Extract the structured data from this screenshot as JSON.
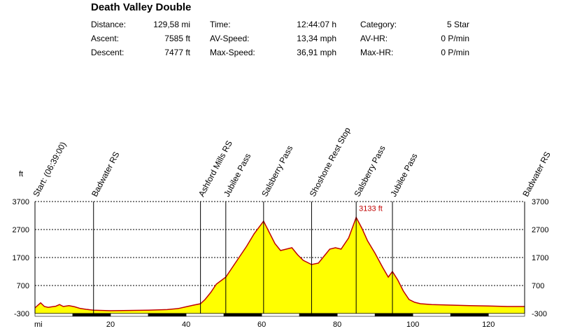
{
  "title": "Death Valley Double",
  "stats": [
    {
      "label": "Distance:",
      "value": "129,58 mi"
    },
    {
      "label": "Ascent:",
      "value": "7585 ft"
    },
    {
      "label": "Descent:",
      "value": "7477 ft"
    },
    {
      "label": "Time:",
      "value": "12:44:07 h"
    },
    {
      "label": "AV-Speed:",
      "value": "13,34 mph"
    },
    {
      "label": "Max-Speed:",
      "value": "36,91 mph"
    },
    {
      "label": "Category:",
      "value": "5 Star"
    },
    {
      "label": "AV-HR:",
      "value": "0 P/min"
    },
    {
      "label": "Max-HR:",
      "value": "0 P/min"
    }
  ],
  "chart_data": {
    "type": "area",
    "xlabel": "mi",
    "ylabel": "ft",
    "xlim": [
      0,
      129.58
    ],
    "ylim": [
      -300,
      3700
    ],
    "x_ticks": [
      20,
      40,
      60,
      80,
      100,
      120
    ],
    "y_ticks": [
      -300,
      700,
      1700,
      2700,
      3700
    ],
    "y_tick_labels": [
      "-300",
      "700",
      "1700",
      "2700",
      "3700"
    ],
    "grid": true,
    "fill_color": "#ffff00",
    "line_color": "#c00000",
    "max_label": "3133 ft",
    "max_point": {
      "x": 85.0,
      "y": 3133
    },
    "waypoints": [
      {
        "name": "Start: (06:39:00)",
        "x": 0
      },
      {
        "name": "Badwater RS",
        "x": 15.5
      },
      {
        "name": "Ashford Mills RS",
        "x": 43.8
      },
      {
        "name": "Jubilee Pass",
        "x": 50.5
      },
      {
        "name": "Salsberry Pass",
        "x": 60.5
      },
      {
        "name": "Shoshone Rest Stop",
        "x": 73.2
      },
      {
        "name": "Salsberry Pass",
        "x": 85.0
      },
      {
        "name": "Jubilee Pass",
        "x": 94.6
      },
      {
        "name": "Badwater RS",
        "x": 129.58
      }
    ],
    "x": [
      0,
      0.8,
      1.5,
      2.5,
      3.5,
      4.5,
      5.5,
      6.5,
      7.5,
      9,
      10.5,
      12,
      13.5,
      15.5,
      20,
      25,
      30,
      35,
      38,
      40,
      42,
      43.8,
      45,
      46.5,
      48,
      49.5,
      50.5,
      52,
      54,
      56,
      58,
      60.5,
      62,
      63.5,
      65,
      66.5,
      68,
      69.5,
      71,
      73.2,
      75,
      76.5,
      78,
      79.5,
      81,
      83,
      85,
      86.5,
      88,
      90,
      92,
      93.5,
      94.6,
      96,
      97.5,
      99,
      100.5,
      102,
      105,
      110,
      115,
      120,
      125,
      129.58
    ],
    "y": [
      -100,
      0,
      80,
      -50,
      -80,
      -60,
      -40,
      20,
      -50,
      -20,
      -60,
      -120,
      -150,
      -180,
      -200,
      -190,
      -180,
      -160,
      -120,
      -60,
      0,
      50,
      200,
      450,
      750,
      900,
      1000,
      1300,
      1700,
      2100,
      2550,
      3000,
      2600,
      2200,
      1950,
      2000,
      2050,
      1800,
      1600,
      1450,
      1500,
      1750,
      2000,
      2050,
      2000,
      2400,
      3133,
      2750,
      2300,
      1850,
      1350,
      1000,
      1200,
      900,
      500,
      200,
      100,
      50,
      20,
      0,
      -20,
      -30,
      -50,
      -50
    ]
  }
}
